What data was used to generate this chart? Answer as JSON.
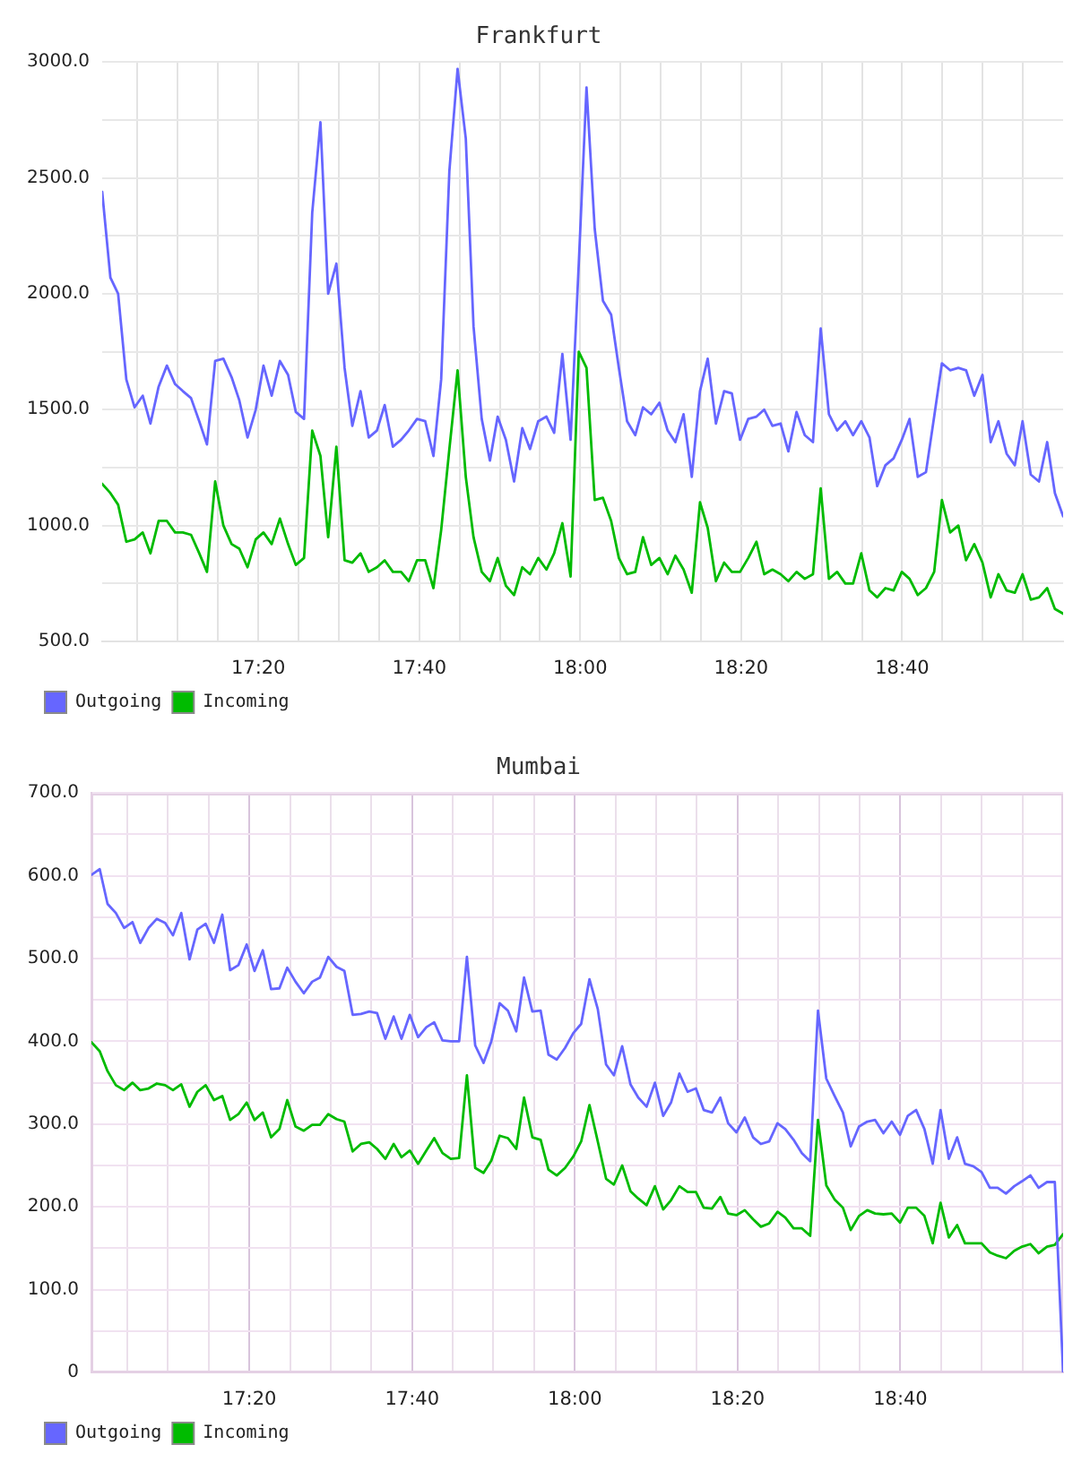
{
  "chart_data": [
    {
      "type": "line",
      "title": "Frankfurt",
      "x": [
        17.01,
        17.027,
        17.043,
        17.06,
        17.077,
        17.094,
        17.11,
        17.127,
        17.144,
        17.161,
        17.177,
        17.194,
        17.211,
        17.227,
        17.244,
        17.261,
        17.278,
        17.294,
        17.311,
        17.328,
        17.344,
        17.361,
        17.378,
        17.395,
        17.411,
        17.428,
        17.445,
        17.462,
        17.478,
        17.495,
        17.512,
        17.528,
        17.545,
        17.562,
        17.579,
        17.595,
        17.612,
        17.629,
        17.645,
        17.662,
        17.679,
        17.696,
        17.712,
        17.729,
        17.746,
        17.763,
        17.779,
        17.796,
        17.813,
        17.829,
        17.846,
        17.863,
        17.88,
        17.896,
        17.913,
        17.93,
        17.946,
        17.963,
        17.98,
        17.997,
        18.013,
        18.03,
        18.047,
        18.064,
        18.08,
        18.097,
        18.114,
        18.13,
        18.147,
        18.164,
        18.181,
        18.197,
        18.214,
        18.231,
        18.248,
        18.264,
        18.281,
        18.298,
        18.314,
        18.331,
        18.348,
        18.365,
        18.381,
        18.398,
        18.415,
        18.431,
        18.448,
        18.465,
        18.482,
        18.498,
        18.515,
        18.532,
        18.549,
        18.565,
        18.582,
        18.599,
        18.615,
        18.632,
        18.649,
        18.666,
        18.682,
        18.699,
        18.716,
        18.733,
        18.749,
        18.766,
        18.783,
        18.799,
        18.816,
        18.833,
        18.85,
        18.866,
        18.883,
        18.9,
        18.916,
        18.933,
        18.95,
        18.967,
        18.983,
        19.0
      ],
      "xlim": [
        17.01,
        19.0
      ],
      "xticks": [
        {
          "value": 17.0833,
          "label": null
        },
        {
          "value": 17.1667,
          "label": null
        },
        {
          "value": 17.25,
          "label": null
        },
        {
          "value": 17.3333,
          "label": "17:20"
        },
        {
          "value": 17.4167,
          "label": null
        },
        {
          "value": 17.5,
          "label": null
        },
        {
          "value": 17.5833,
          "label": null
        },
        {
          "value": 17.6667,
          "label": "17:40"
        },
        {
          "value": 17.75,
          "label": null
        },
        {
          "value": 17.8333,
          "label": null
        },
        {
          "value": 17.9167,
          "label": null
        },
        {
          "value": 18.0,
          "label": "18:00"
        },
        {
          "value": 18.0833,
          "label": null
        },
        {
          "value": 18.1667,
          "label": null
        },
        {
          "value": 18.25,
          "label": null
        },
        {
          "value": 18.3333,
          "label": "18:20"
        },
        {
          "value": 18.4167,
          "label": null
        },
        {
          "value": 18.5,
          "label": null
        },
        {
          "value": 18.5833,
          "label": null
        },
        {
          "value": 18.6667,
          "label": "18:40"
        },
        {
          "value": 18.75,
          "label": null
        },
        {
          "value": 18.8333,
          "label": null
        },
        {
          "value": 18.9167,
          "label": null
        }
      ],
      "ylim": [
        500,
        3000
      ],
      "yticks": [
        {
          "value": 500,
          "label": "500.0"
        },
        {
          "value": 750,
          "label": null
        },
        {
          "value": 1000,
          "label": "1000.0"
        },
        {
          "value": 1250,
          "label": null
        },
        {
          "value": 1500,
          "label": "1500.0"
        },
        {
          "value": 1750,
          "label": null
        },
        {
          "value": 2000,
          "label": "2000.0"
        },
        {
          "value": 2250,
          "label": null
        },
        {
          "value": 2500,
          "label": "2500.0"
        },
        {
          "value": 2750,
          "label": null
        },
        {
          "value": 3000,
          "label": "3000.0"
        }
      ],
      "grid": true,
      "legend": "bottom left",
      "marker": "none",
      "series": [
        {
          "name": "Outgoing",
          "color": "#6666ff",
          "values": [
            2440,
            2070,
            2000,
            1630,
            1510,
            1560,
            1440,
            1600,
            1690,
            1610,
            1580,
            1550,
            1450,
            1350,
            1710,
            1720,
            1640,
            1540,
            1380,
            1500,
            1690,
            1560,
            1710,
            1650,
            1490,
            1460,
            2350,
            2740,
            2000,
            2130,
            1680,
            1430,
            1580,
            1380,
            1410,
            1520,
            1340,
            1370,
            1410,
            1460,
            1450,
            1300,
            1630,
            2530,
            2970,
            2670,
            1860,
            1460,
            1280,
            1470,
            1370,
            1190,
            1420,
            1330,
            1450,
            1470,
            1400,
            1740,
            1370,
            2130,
            2890,
            2280,
            1970,
            1910,
            1680,
            1450,
            1390,
            1510,
            1480,
            1530,
            1410,
            1360,
            1480,
            1210,
            1580,
            1720,
            1440,
            1580,
            1570,
            1370,
            1460,
            1470,
            1500,
            1430,
            1440,
            1320,
            1490,
            1390,
            1360,
            1850,
            1480,
            1410,
            1450,
            1390,
            1450,
            1380,
            1170,
            1260,
            1290,
            1370,
            1460,
            1210,
            1230,
            1470,
            1700,
            1670,
            1680,
            1670,
            1560,
            1650,
            1360,
            1450,
            1310,
            1260,
            1450,
            1220,
            1190,
            1360,
            1140,
            1040
          ]
        },
        {
          "name": "Incoming",
          "color": "#00bb00",
          "values": [
            1180,
            1140,
            1090,
            930,
            940,
            970,
            880,
            1020,
            1020,
            970,
            970,
            960,
            880,
            800,
            1190,
            1000,
            920,
            900,
            820,
            940,
            970,
            920,
            1030,
            920,
            830,
            860,
            1410,
            1300,
            950,
            1340,
            850,
            840,
            880,
            800,
            820,
            850,
            800,
            800,
            760,
            850,
            850,
            730,
            980,
            1330,
            1670,
            1210,
            950,
            800,
            760,
            860,
            740,
            700,
            820,
            790,
            860,
            810,
            880,
            1010,
            780,
            1750,
            1680,
            1110,
            1120,
            1020,
            860,
            790,
            800,
            950,
            830,
            860,
            790,
            870,
            810,
            710,
            1100,
            990,
            760,
            840,
            800,
            800,
            860,
            930,
            790,
            810,
            790,
            760,
            800,
            770,
            790,
            1160,
            770,
            800,
            750,
            750,
            880,
            720,
            690,
            730,
            720,
            800,
            770,
            700,
            730,
            800,
            1110,
            970,
            1000,
            850,
            920,
            840,
            690,
            790,
            720,
            710,
            790,
            680,
            690,
            730,
            640,
            620
          ]
        }
      ]
    },
    {
      "type": "line",
      "title": "Mumbai",
      "x": [
        17.01,
        17.027,
        17.043,
        17.06,
        17.077,
        17.094,
        17.11,
        17.127,
        17.144,
        17.161,
        17.177,
        17.194,
        17.211,
        17.227,
        17.244,
        17.261,
        17.278,
        17.294,
        17.311,
        17.328,
        17.344,
        17.361,
        17.378,
        17.395,
        17.411,
        17.428,
        17.445,
        17.462,
        17.478,
        17.495,
        17.512,
        17.528,
        17.545,
        17.562,
        17.579,
        17.595,
        17.612,
        17.629,
        17.645,
        17.662,
        17.679,
        17.696,
        17.712,
        17.729,
        17.746,
        17.763,
        17.779,
        17.796,
        17.813,
        17.829,
        17.846,
        17.863,
        17.88,
        17.896,
        17.913,
        17.93,
        17.946,
        17.963,
        17.98,
        17.997,
        18.013,
        18.03,
        18.047,
        18.064,
        18.08,
        18.097,
        18.114,
        18.13,
        18.147,
        18.164,
        18.181,
        18.197,
        18.214,
        18.231,
        18.248,
        18.264,
        18.281,
        18.298,
        18.314,
        18.331,
        18.348,
        18.365,
        18.381,
        18.398,
        18.415,
        18.431,
        18.448,
        18.465,
        18.482,
        18.498,
        18.515,
        18.532,
        18.549,
        18.565,
        18.582,
        18.599,
        18.615,
        18.632,
        18.649,
        18.666,
        18.682,
        18.699,
        18.716,
        18.733,
        18.749,
        18.766,
        18.783,
        18.799,
        18.816,
        18.833,
        18.85,
        18.866,
        18.883,
        18.9,
        18.916,
        18.933,
        18.95,
        18.967,
        18.983,
        19.0
      ],
      "xlim": [
        17.01,
        19.0
      ],
      "xticks": [
        {
          "value": 17.0833,
          "label": null
        },
        {
          "value": 17.1667,
          "label": null
        },
        {
          "value": 17.25,
          "label": null
        },
        {
          "value": 17.3333,
          "label": "17:20"
        },
        {
          "value": 17.4167,
          "label": null
        },
        {
          "value": 17.5,
          "label": null
        },
        {
          "value": 17.5833,
          "label": null
        },
        {
          "value": 17.6667,
          "label": "17:40"
        },
        {
          "value": 17.75,
          "label": null
        },
        {
          "value": 17.8333,
          "label": null
        },
        {
          "value": 17.9167,
          "label": null
        },
        {
          "value": 18.0,
          "label": "18:00"
        },
        {
          "value": 18.0833,
          "label": null
        },
        {
          "value": 18.1667,
          "label": null
        },
        {
          "value": 18.25,
          "label": null
        },
        {
          "value": 18.3333,
          "label": "18:20"
        },
        {
          "value": 18.4167,
          "label": null
        },
        {
          "value": 18.5,
          "label": null
        },
        {
          "value": 18.5833,
          "label": null
        },
        {
          "value": 18.6667,
          "label": "18:40"
        },
        {
          "value": 18.75,
          "label": null
        },
        {
          "value": 18.8333,
          "label": null
        },
        {
          "value": 18.9167,
          "label": null
        }
      ],
      "ylim": [
        0,
        700
      ],
      "yticks": [
        0,
        {
          "value": 50,
          "label": null
        },
        {
          "value": 100,
          "label": "100.0"
        },
        {
          "value": 150,
          "label": null
        },
        {
          "value": 200,
          "label": "200.0"
        },
        {
          "value": 250,
          "label": null
        },
        {
          "value": 300,
          "label": "300.0"
        },
        {
          "value": 350,
          "label": null
        },
        {
          "value": 400,
          "label": "400.0"
        },
        {
          "value": 450,
          "label": null
        },
        {
          "value": 500,
          "label": "500.0"
        },
        {
          "value": 550,
          "label": null
        },
        {
          "value": 600,
          "label": "600.0"
        },
        {
          "value": 650,
          "label": null
        },
        {
          "value": 700,
          "label": "700.0"
        }
      ],
      "grid": true,
      "legend": "bottom left",
      "marker": "none",
      "series": [
        {
          "name": "Outgoing",
          "color": "#6666ff",
          "values": [
            601,
            608,
            566,
            555,
            537,
            544,
            519,
            537,
            548,
            543,
            528,
            555,
            499,
            535,
            542,
            519,
            553,
            486,
            492,
            517,
            485,
            510,
            463,
            464,
            489,
            472,
            458,
            472,
            477,
            502,
            490,
            485,
            432,
            433,
            436,
            434,
            403,
            430,
            403,
            432,
            405,
            417,
            423,
            401,
            400,
            400,
            502,
            395,
            374,
            400,
            446,
            437,
            412,
            477,
            436,
            437,
            384,
            378,
            392,
            410,
            421,
            475,
            439,
            372,
            359,
            394,
            348,
            332,
            321,
            350,
            310,
            326,
            361,
            339,
            343,
            317,
            314,
            332,
            301,
            290,
            308,
            284,
            276,
            279,
            301,
            294,
            281,
            265,
            255,
            437,
            355,
            334,
            314,
            273,
            297,
            303,
            305,
            289,
            303,
            287,
            310,
            317,
            294,
            252,
            317,
            258,
            284,
            252,
            249,
            242,
            223,
            223,
            216,
            225,
            231,
            238,
            223,
            230,
            230,
            0
          ]
        },
        {
          "name": "Incoming",
          "color": "#00bb00",
          "values": [
            399,
            388,
            364,
            347,
            341,
            350,
            341,
            343,
            349,
            347,
            341,
            348,
            321,
            339,
            347,
            329,
            334,
            305,
            312,
            326,
            305,
            314,
            284,
            294,
            329,
            297,
            292,
            299,
            299,
            312,
            306,
            303,
            267,
            276,
            278,
            270,
            258,
            276,
            260,
            268,
            252,
            268,
            283,
            265,
            258,
            259,
            359,
            247,
            241,
            256,
            286,
            283,
            270,
            332,
            284,
            281,
            245,
            238,
            247,
            261,
            279,
            323,
            279,
            234,
            227,
            250,
            219,
            210,
            202,
            225,
            197,
            208,
            225,
            218,
            218,
            199,
            198,
            212,
            192,
            190,
            196,
            185,
            176,
            180,
            194,
            187,
            174,
            174,
            165,
            305,
            226,
            209,
            199,
            172,
            189,
            196,
            192,
            191,
            192,
            181,
            199,
            199,
            189,
            156,
            205,
            163,
            178,
            156,
            156,
            156,
            145,
            141,
            138,
            147,
            152,
            155,
            144,
            152,
            154,
            167
          ]
        }
      ]
    }
  ]
}
